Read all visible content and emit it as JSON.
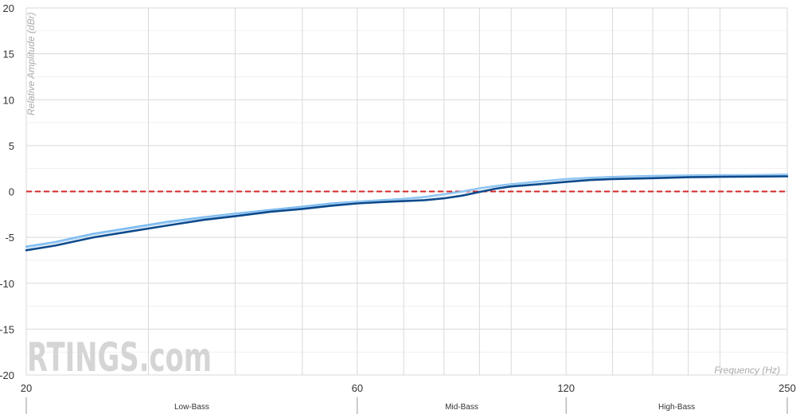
{
  "chart_data": {
    "type": "line",
    "xlabel": "Frequency (Hz)",
    "ylabel": "Relative Amplitude (dBr)",
    "xscale": "log",
    "xlim": [
      20,
      250
    ],
    "ylim": [
      -20,
      20
    ],
    "x_ticks": [
      "20",
      "60",
      "120",
      "250"
    ],
    "y_ticks": [
      "20",
      "15",
      "10",
      "5",
      "0",
      "-5",
      "-10",
      "-15",
      "-20"
    ],
    "bands": [
      "Low-Bass",
      "Mid-Bass",
      "High-Bass"
    ],
    "watermark": "RTINGS.com",
    "colors": {
      "target": "#d62728",
      "series_1": "#6cb4f0",
      "series_2": "#9ccbf2",
      "series_3": "#0d4a8c",
      "grid": "#d9d9d9"
    },
    "target": {
      "y": 0
    },
    "series": [
      {
        "x": [
          20,
          22,
          25,
          28,
          32,
          36,
          40,
          45,
          50,
          55,
          60,
          65,
          70,
          75,
          80,
          85,
          90,
          95,
          100,
          110,
          120,
          130,
          140,
          160,
          180,
          200,
          220,
          250
        ],
        "values": [
          -6.0,
          -5.5,
          -4.6,
          -4.0,
          -3.3,
          -2.8,
          -2.4,
          -2.0,
          -1.65,
          -1.3,
          -1.1,
          -0.95,
          -0.8,
          -0.6,
          -0.3,
          0.0,
          0.35,
          0.6,
          0.8,
          1.1,
          1.35,
          1.5,
          1.6,
          1.7,
          1.75,
          1.8,
          1.8,
          1.85
        ]
      },
      {
        "x": [
          20,
          22,
          25,
          28,
          32,
          36,
          40,
          45,
          50,
          55,
          60,
          65,
          70,
          75,
          80,
          85,
          90,
          95,
          100,
          110,
          120,
          130,
          140,
          160,
          180,
          200,
          220,
          250
        ],
        "values": [
          -6.1,
          -5.6,
          -4.7,
          -4.1,
          -3.4,
          -2.9,
          -2.5,
          -2.1,
          -1.75,
          -1.4,
          -1.15,
          -1.0,
          -0.85,
          -0.65,
          -0.35,
          -0.05,
          0.3,
          0.55,
          0.75,
          1.05,
          1.3,
          1.45,
          1.55,
          1.65,
          1.7,
          1.75,
          1.75,
          1.8
        ]
      },
      {
        "x": [
          20,
          22,
          25,
          28,
          32,
          36,
          40,
          45,
          50,
          55,
          60,
          65,
          70,
          75,
          80,
          85,
          90,
          95,
          100,
          110,
          120,
          130,
          140,
          160,
          180,
          200,
          220,
          250
        ],
        "values": [
          -6.4,
          -5.9,
          -5.0,
          -4.4,
          -3.7,
          -3.1,
          -2.7,
          -2.2,
          -1.9,
          -1.55,
          -1.3,
          -1.15,
          -1.05,
          -0.95,
          -0.75,
          -0.45,
          -0.05,
          0.3,
          0.55,
          0.8,
          1.05,
          1.25,
          1.35,
          1.45,
          1.55,
          1.6,
          1.62,
          1.65
        ]
      }
    ]
  }
}
